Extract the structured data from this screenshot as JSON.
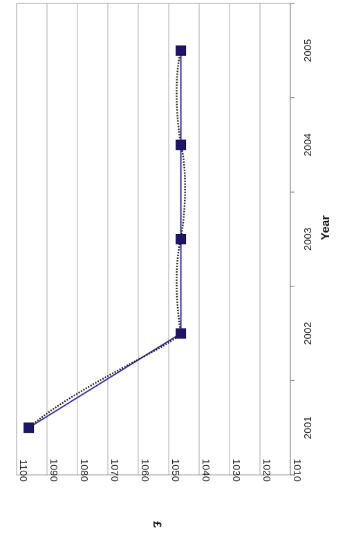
{
  "chart_data": {
    "type": "line",
    "orientation": "rotated-90-clockwise",
    "xlabel": "Year",
    "ylabel": "£",
    "categories": [
      "2001",
      "2002",
      "2003",
      "2004",
      "2005"
    ],
    "ylim": [
      1010,
      1100
    ],
    "yticks": [
      "1100",
      "1090",
      "1080",
      "1070",
      "1060",
      "1050",
      "1040",
      "1030",
      "1020",
      "1010"
    ],
    "grid": true,
    "series": [
      {
        "values": [
          1096,
          1046,
          1046,
          1046,
          1046
        ],
        "style": "solid",
        "color": "#3a2fa8",
        "marker": "square",
        "marker_color": "#1e1470"
      },
      {
        "values": [
          1096,
          1046,
          1046,
          1046,
          1046
        ],
        "style": "dotted-smooth",
        "color": "#222222",
        "marker": "none"
      }
    ]
  }
}
